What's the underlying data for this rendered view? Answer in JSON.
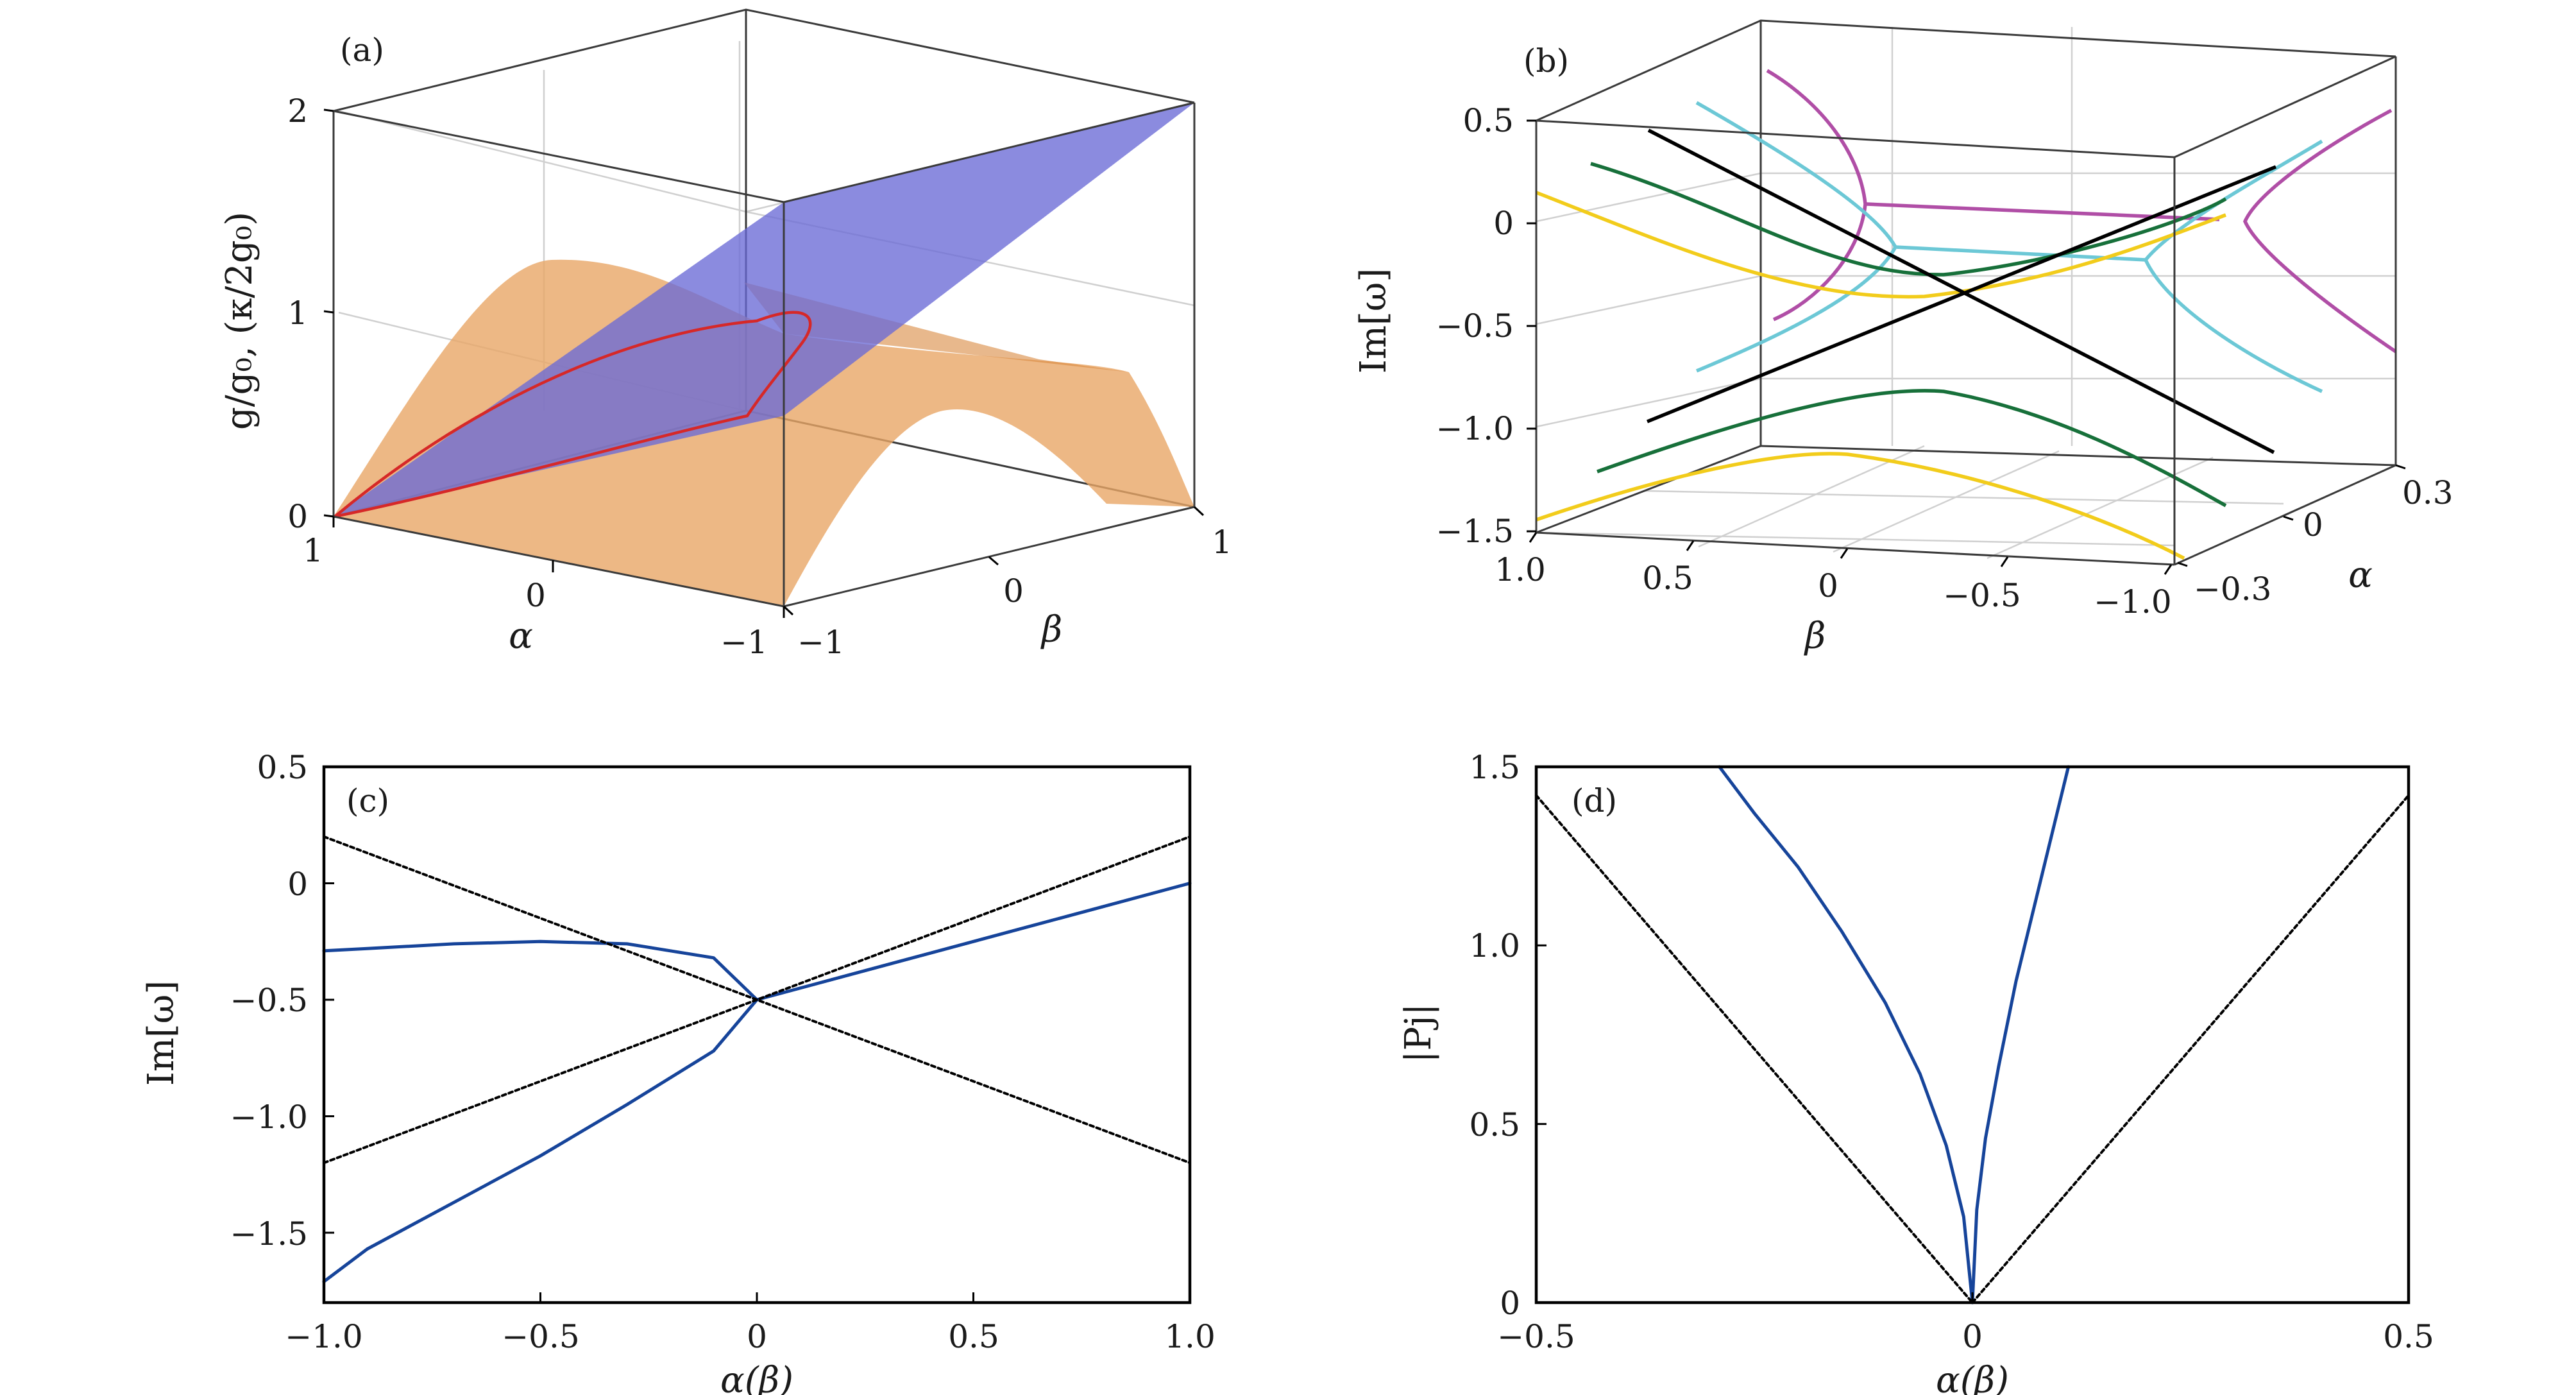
{
  "figure": {
    "panels": {
      "a": {
        "label": "(a)",
        "ylabel": "g/g₀, (κ/2g₀)",
        "xlabel": "α",
        "zlabel": "β",
        "yticks": [
          "0",
          "1",
          "2"
        ],
        "xticks": [
          "1",
          "0",
          "−1"
        ],
        "zticks": [
          "−1",
          "0",
          "1"
        ]
      },
      "b": {
        "label": "(b)",
        "ylabel": "Im[ω]",
        "xlabel": "β",
        "zlabel": "α",
        "yticks": [
          "0.5",
          "0",
          "−0.5",
          "−1.0",
          "−1.5"
        ],
        "xticks": [
          "1.0",
          "0.5",
          "0",
          "−0.5",
          "−1.0"
        ],
        "zticks": [
          "0.3",
          "0",
          "−0.3"
        ]
      },
      "c": {
        "label": "(c)",
        "ylabel": "Im[ω]",
        "xlabel": "α(β)",
        "yticks": [
          "0.5",
          "0",
          "−0.5",
          "−1.0",
          "−1.5"
        ],
        "xticks": [
          "−1.0",
          "−0.5",
          "0",
          "0.5",
          "1.0"
        ]
      },
      "d": {
        "label": "(d)",
        "ylabel": "|Pj|",
        "xlabel": "α(β)",
        "yticks": [
          "1.5",
          "1.0",
          "0.5",
          "0"
        ],
        "xticks": [
          "−0.5",
          "0",
          "0.5"
        ]
      }
    }
  },
  "chart_data": [
    {
      "panel": "a",
      "type": "surface",
      "xlabel": "α",
      "zlabel": "β",
      "ylabel": "g/g₀, (κ/2g₀)",
      "xlim": [
        1,
        -1
      ],
      "zlim": [
        -1,
        1
      ],
      "ylim": [
        0,
        2
      ],
      "surfaces": [
        {
          "color": "#6a6ad6",
          "description_points": [
            [
              1,
              -1,
              0
            ],
            [
              -1,
              -1,
              0
            ],
            [
              -1,
              1,
              2
            ],
            [
              1,
              1,
              2
            ]
          ]
        },
        {
          "color": "#e8a666",
          "profile": "parabola in α with peak 1 at α = 0"
        }
      ],
      "curve_color": "#d62828",
      "colors": {
        "plane": "#6a6ad6",
        "dome": "#e8a666",
        "ep_curve": "#d62828"
      }
    },
    {
      "panel": "b",
      "type": "line3d",
      "xlabel": "β",
      "zlabel": "α",
      "ylabel": "Im[ω]",
      "xlim": [
        1.0,
        -1.0
      ],
      "zlim": [
        -0.3,
        0.3
      ],
      "ylim": [
        -1.5,
        0.5
      ],
      "colors": [
        "#b04ea6",
        "#6cc8d6",
        "#17703a",
        "#f2cc1b",
        "#000000"
      ]
    },
    {
      "panel": "c",
      "type": "line",
      "xlabel": "α(β)",
      "ylabel": "Im[ω]",
      "xlim": [
        -1.0,
        1.0
      ],
      "ylim": [
        -1.8,
        0.5
      ],
      "series": [
        {
          "style": "solid",
          "color": "#16449a",
          "x": [
            0,
            -0.1,
            -0.3,
            -0.5,
            -0.7,
            -0.9,
            -1.0,
            -0.9,
            -0.7,
            -0.5,
            -0.3,
            -0.1,
            0,
            0.2,
            0.4,
            0.6,
            0.8,
            1.0
          ],
          "y": [
            -0.5,
            -0.32,
            -0.26,
            -0.25,
            -0.26,
            -0.28,
            -0.29,
            -0.28,
            -0.26,
            -0.25,
            -0.26,
            -0.32,
            -0.5,
            -0.4,
            -0.3,
            -0.2,
            -0.1,
            0.0
          ]
        },
        {
          "style": "solid",
          "color": "#16449a",
          "x": [
            0,
            -0.1,
            -0.3,
            -0.5,
            -0.7,
            -0.9,
            -1.0
          ],
          "y": [
            -0.5,
            -0.72,
            -0.95,
            -1.17,
            -1.37,
            -1.57,
            -1.71
          ]
        },
        {
          "style": "dotted",
          "color": "#000000",
          "x": [
            -1.0,
            1.0
          ],
          "y": [
            0.2,
            -1.2
          ]
        },
        {
          "style": "dotted",
          "color": "#000000",
          "x": [
            -1.0,
            1.0
          ],
          "y": [
            -1.2,
            0.2
          ]
        }
      ]
    },
    {
      "panel": "d",
      "type": "line",
      "xlabel": "α(β)",
      "ylabel": "|Pj|",
      "xlim": [
        -0.5,
        0.5
      ],
      "ylim": [
        0,
        1.5
      ],
      "series": [
        {
          "style": "solid",
          "color": "#16449a",
          "x": [
            -0.29,
            -0.25,
            -0.2,
            -0.15,
            -0.1,
            -0.06,
            -0.03,
            -0.01,
            0
          ],
          "y": [
            1.5,
            1.37,
            1.22,
            1.04,
            0.84,
            0.64,
            0.44,
            0.24,
            0
          ]
        },
        {
          "style": "solid",
          "color": "#16449a",
          "x": [
            0,
            0.005,
            0.015,
            0.03,
            0.05,
            0.07,
            0.09,
            0.11
          ],
          "y": [
            0,
            0.26,
            0.46,
            0.66,
            0.9,
            1.1,
            1.3,
            1.5
          ]
        },
        {
          "style": "dotted",
          "color": "#000000",
          "x": [
            -0.5,
            0
          ],
          "y": [
            1.42,
            0
          ]
        },
        {
          "style": "dotted",
          "color": "#000000",
          "x": [
            0,
            0.5
          ],
          "y": [
            0,
            1.42
          ]
        }
      ]
    }
  ]
}
